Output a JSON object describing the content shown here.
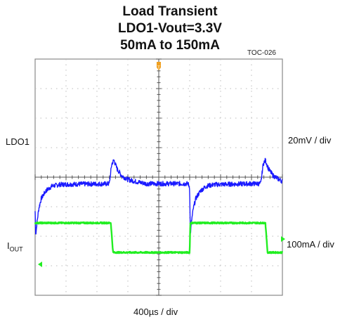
{
  "chart_data": {
    "type": "line",
    "title": [
      "Load Transient",
      "LDO1-Vout=3.3V",
      "50mA to 150mA"
    ],
    "figure_id": "TOC-026",
    "xlabel": "400µs / div",
    "grid": true,
    "x_divisions": 8,
    "y_divisions": 8,
    "channels": [
      {
        "name": "LDO1",
        "scale": "20mV / div",
        "color": "#1a1aff",
        "x_div": [
          0.0,
          0.02,
          0.06,
          0.12,
          0.2,
          0.35,
          0.55,
          0.8,
          1.2,
          1.6,
          2.0,
          2.5,
          3.0,
          3.5,
          4.0,
          4.5,
          4.95,
          5.0,
          5.02,
          5.06,
          5.12,
          5.2,
          5.35,
          5.55,
          5.8,
          6.2,
          6.6,
          7.0,
          7.5,
          8.0
        ],
        "y_div": [
          -1.15,
          -1.95,
          -1.55,
          -1.05,
          -0.72,
          -0.46,
          -0.3,
          -0.25,
          -0.24,
          -0.23,
          -0.23,
          -0.22,
          -0.22,
          -0.22,
          -0.22,
          -0.22,
          -0.22,
          -0.35,
          -1.95,
          -1.5,
          -1.05,
          -0.72,
          -0.46,
          -0.3,
          -0.25,
          -0.24,
          -0.23,
          -0.22,
          -0.22,
          -0.22
        ],
        "spikes": [
          {
            "x_div": [
              2.4,
              2.48,
              2.55,
              2.65,
              2.8,
              3.0,
              3.3,
              3.6
            ],
            "y_div": [
              -0.22,
              0.45,
              0.58,
              0.28,
              0.05,
              -0.08,
              -0.16,
              -0.22
            ]
          },
          {
            "x_div": [
              7.3,
              7.38,
              7.45,
              7.55,
              7.7,
              7.9,
              8.0
            ],
            "y_div": [
              -0.22,
              0.45,
              0.58,
              0.28,
              0.05,
              -0.08,
              -0.14
            ]
          }
        ]
      },
      {
        "name": "IOUT",
        "scale": "100mA / div",
        "color": "#22ee22",
        "x_div": [
          0.0,
          2.45,
          2.52,
          5.0,
          5.02,
          7.45,
          7.52,
          8.0
        ],
        "y_div": [
          -1.55,
          -1.55,
          -2.55,
          -2.55,
          -1.55,
          -1.55,
          -2.55,
          -2.55
        ]
      }
    ],
    "trigger_marker": "orange"
  },
  "labels": {
    "ldo1": "LDO1",
    "iout_main": "I",
    "iout_sub": "OUT",
    "ldo1_scale": "20mV / div",
    "iout_scale": "100mA / div",
    "time_scale": "400µs / div"
  }
}
